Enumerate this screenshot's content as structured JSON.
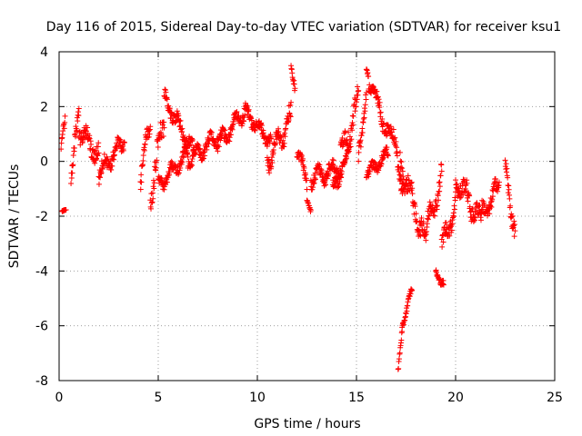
{
  "chart_data": {
    "type": "scatter",
    "title": "Day 116 of 2015, Sidereal Day-to-day VTEC variation (SDTVAR) for receiver ksu1",
    "xlabel": "GPS time / hours",
    "ylabel": "SDTVAR / TECUs",
    "xlim": [
      0,
      25
    ],
    "ylim": [
      -8,
      4
    ],
    "xticks": [
      0,
      5,
      10,
      15,
      20,
      25
    ],
    "yticks": [
      -8,
      -6,
      -4,
      -2,
      0,
      2,
      4
    ],
    "xtick_labels": [
      "0",
      "5",
      "10",
      "15",
      "20",
      "25"
    ],
    "ytick_labels": [
      "-8",
      "-6",
      "-4",
      "-2",
      "0",
      "2",
      "4"
    ],
    "grid": true,
    "marker": "+",
    "color": "#ff0000",
    "series": [
      {
        "name": "SDTVAR",
        "segments": [
          {
            "t0": 0.15,
            "t1": 0.35,
            "v0": -1.8,
            "v1": -1.8,
            "noise": 0.05
          },
          {
            "t0": 0.1,
            "t1": 0.3,
            "v0": 0.4,
            "v1": 1.5,
            "noise": 0.4
          },
          {
            "t0": 0.6,
            "t1": 1.0,
            "v0": -0.4,
            "v1": 1.6,
            "noise": 0.5
          },
          {
            "t0": 1.0,
            "t1": 2.0,
            "v0": 1.2,
            "v1": 0.2,
            "noise": 0.5
          },
          {
            "t0": 2.0,
            "t1": 3.3,
            "v0": -0.5,
            "v1": 0.8,
            "noise": 0.45
          },
          {
            "t0": 4.1,
            "t1": 4.6,
            "v0": -0.8,
            "v1": 1.6,
            "noise": 0.6
          },
          {
            "t0": 4.6,
            "t1": 5.3,
            "v0": -1.2,
            "v1": 1.5,
            "noise": 0.7
          },
          {
            "t0": 5.3,
            "t1": 6.8,
            "v0": 2.3,
            "v1": 0.3,
            "noise": 0.4
          },
          {
            "t0": 5.0,
            "t1": 6.5,
            "v0": -0.9,
            "v1": 0.3,
            "noise": 0.35
          },
          {
            "t0": 6.5,
            "t1": 8.0,
            "v0": 0.0,
            "v1": 0.9,
            "noise": 0.4
          },
          {
            "t0": 8.0,
            "t1": 9.4,
            "v0": 0.6,
            "v1": 1.9,
            "noise": 0.4
          },
          {
            "t0": 9.4,
            "t1": 10.7,
            "v0": 1.8,
            "v1": 0.7,
            "noise": 0.35
          },
          {
            "t0": 10.5,
            "t1": 11.7,
            "v0": 0.0,
            "v1": 1.6,
            "noise": 0.55
          },
          {
            "t0": 11.7,
            "t1": 11.9,
            "v0": 3.5,
            "v1": 2.5,
            "noise": 0.25
          },
          {
            "t0": 12.0,
            "t1": 12.5,
            "v0": 0.5,
            "v1": -0.8,
            "noise": 0.35
          },
          {
            "t0": 12.5,
            "t1": 12.7,
            "v0": -1.5,
            "v1": -1.8,
            "noise": 0.12
          },
          {
            "t0": 12.7,
            "t1": 14.2,
            "v0": -0.6,
            "v1": -0.2,
            "noise": 0.45
          },
          {
            "t0": 14.2,
            "t1": 15.1,
            "v0": 0.2,
            "v1": 2.1,
            "noise": 0.7
          },
          {
            "t0": 13.8,
            "t1": 14.6,
            "v0": -1.0,
            "v1": 0.2,
            "noise": 0.35
          },
          {
            "t0": 15.1,
            "t1": 15.5,
            "v0": 0.0,
            "v1": 2.8,
            "noise": 0.6
          },
          {
            "t0": 15.5,
            "t1": 16.6,
            "v0": 3.3,
            "v1": 1.0,
            "noise": 0.45
          },
          {
            "t0": 15.5,
            "t1": 16.6,
            "v0": -0.5,
            "v1": 0.3,
            "noise": 0.3
          },
          {
            "t0": 16.6,
            "t1": 17.4,
            "v0": 1.5,
            "v1": -1.0,
            "noise": 0.5
          },
          {
            "t0": 17.1,
            "t1": 17.3,
            "v0": -7.7,
            "v1": -6.3,
            "noise": 0.2
          },
          {
            "t0": 17.3,
            "t1": 17.8,
            "v0": -6.0,
            "v1": -4.7,
            "noise": 0.2
          },
          {
            "t0": 17.2,
            "t1": 18.5,
            "v0": 0.0,
            "v1": -3.0,
            "noise": 0.6
          },
          {
            "t0": 18.5,
            "t1": 19.3,
            "v0": -2.6,
            "v1": -0.5,
            "noise": 0.6
          },
          {
            "t0": 19.0,
            "t1": 19.4,
            "v0": -4.0,
            "v1": -4.5,
            "noise": 0.2
          },
          {
            "t0": 19.3,
            "t1": 20.0,
            "v0": -3.2,
            "v1": -1.5,
            "noise": 0.55
          },
          {
            "t0": 20.0,
            "t1": 21.3,
            "v0": -0.6,
            "v1": -2.2,
            "noise": 0.6
          },
          {
            "t0": 21.3,
            "t1": 22.2,
            "v0": -2.0,
            "v1": -0.9,
            "noise": 0.5
          },
          {
            "t0": 22.5,
            "t1": 23.0,
            "v0": -0.3,
            "v1": -2.5,
            "noise": 0.55
          }
        ]
      }
    ]
  }
}
